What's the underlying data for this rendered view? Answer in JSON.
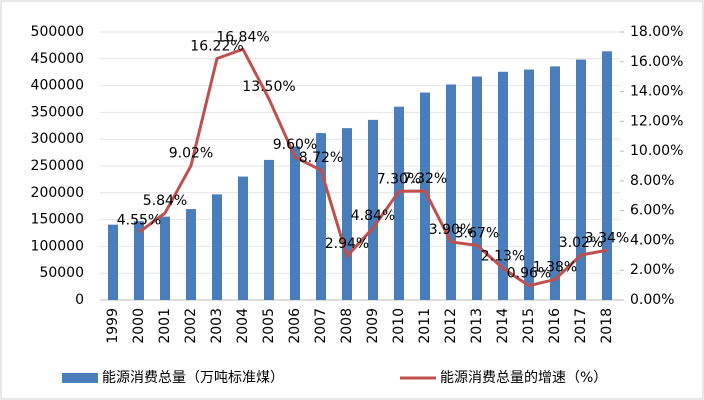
{
  "chart_data": {
    "type": "bar-line",
    "categories": [
      "1999",
      "2000",
      "2001",
      "2002",
      "2003",
      "2004",
      "2005",
      "2006",
      "2007",
      "2008",
      "2009",
      "2010",
      "2011",
      "2012",
      "2013",
      "2014",
      "2015",
      "2016",
      "2017",
      "2018"
    ],
    "series": [
      {
        "name": "能源消费总量（万吨标准煤）",
        "type": "bar",
        "color": "#4a7ebb",
        "values": [
          140569,
          146964,
          155547,
          169577,
          197083,
          230281,
          261369,
          286467,
          311442,
          320611,
          336126,
          360648,
          387043,
          402138,
          416913,
          425806,
          429905,
          435819,
          448529,
          464000
        ]
      },
      {
        "name": "能源消费总量的增速（%）",
        "type": "line",
        "color": "#c0504d",
        "axis": "y2",
        "values": [
          null,
          4.55,
          5.84,
          9.02,
          16.22,
          16.84,
          13.5,
          9.6,
          8.72,
          2.94,
          4.84,
          7.3,
          7.32,
          3.9,
          3.67,
          2.13,
          0.96,
          1.38,
          3.02,
          3.34
        ],
        "value_labels": [
          null,
          "4.55%",
          "5.84%",
          "9.02%",
          "16.22%",
          "16.84%",
          "13.50%",
          "9.60%",
          "8.72%",
          "2.94%",
          "4.84%",
          "7.30%",
          "7.32%",
          "3.90%",
          "3.67%",
          "2.13%",
          "0.96%",
          "1.38%",
          "3.02%",
          "3.34%"
        ]
      }
    ],
    "ylim": [
      0,
      500000
    ],
    "yticks": [
      0,
      50000,
      100000,
      150000,
      200000,
      250000,
      300000,
      350000,
      400000,
      450000,
      500000
    ],
    "y2lim": [
      0,
      18
    ],
    "y2ticks": [
      {
        "value": 0,
        "label": "0.00%"
      },
      {
        "value": 2,
        "label": "2.00%"
      },
      {
        "value": 4,
        "label": "4.00%"
      },
      {
        "value": 6,
        "label": "6.00%"
      },
      {
        "value": 8,
        "label": "8.00%"
      },
      {
        "value": 10,
        "label": "10.00%"
      },
      {
        "value": 12,
        "label": "12.00%"
      },
      {
        "value": 14,
        "label": "14.00%"
      },
      {
        "value": 16,
        "label": "16.00%"
      },
      {
        "value": 18,
        "label": "18.00%"
      }
    ],
    "grid": true
  }
}
